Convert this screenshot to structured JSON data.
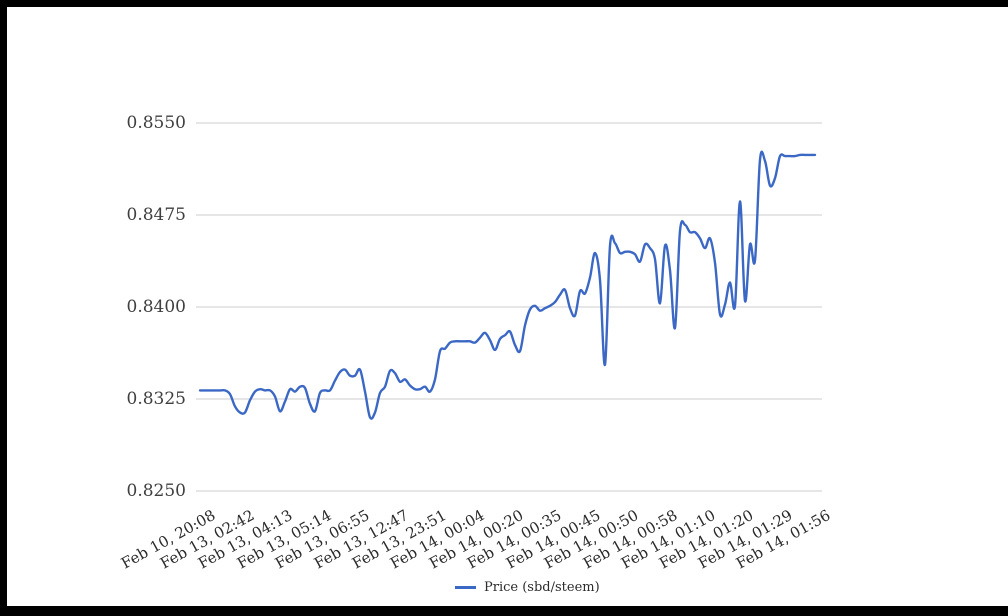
{
  "window": {
    "frame_color": "#000000",
    "background_color": "#ffffff"
  },
  "chart_data": {
    "type": "line",
    "title": "",
    "xlabel": "",
    "ylabel": "",
    "grid": "horizontal",
    "legend_position": "bottom-center",
    "line_color": "#3b68c5",
    "gridline_color": "#cccccc",
    "y_tick_labels": [
      "0.8550",
      "0.8475",
      "0.8400",
      "0.8325",
      "0.8250"
    ],
    "y_ticks": [
      0.855,
      0.8475,
      0.84,
      0.8325,
      0.825
    ],
    "ylim": [
      0.825,
      0.8585
    ],
    "x_tick_labels": [
      "Feb 10, 20:08",
      "Feb 13, 02:42",
      "Feb 13, 04:13",
      "Feb 13, 05:14",
      "Feb 13, 06:55",
      "Feb 13, 12:47",
      "Feb 13, 23:51",
      "Feb 14, 00:04",
      "Feb 14, 00:20",
      "Feb 14, 00:35",
      "Feb 14, 00:45",
      "Feb 14, 00:50",
      "Feb 14, 00:58",
      "Feb 14, 01:10",
      "Feb 14, 01:20",
      "Feb 14, 01:29",
      "Feb 14, 01:56"
    ],
    "series": [
      {
        "name": "Price (sbd/steem)",
        "color": "#3b68c5",
        "values": [
          0.8332,
          0.8332,
          0.8332,
          0.8332,
          0.8332,
          0.8332,
          0.8329,
          0.8319,
          0.8314,
          0.8314,
          0.8324,
          0.8331,
          0.8333,
          0.8332,
          0.8332,
          0.8327,
          0.8315,
          0.8323,
          0.8333,
          0.8331,
          0.8335,
          0.8334,
          0.8321,
          0.8315,
          0.833,
          0.8332,
          0.8332,
          0.834,
          0.8347,
          0.8349,
          0.8344,
          0.8344,
          0.8349,
          0.8331,
          0.831,
          0.8314,
          0.833,
          0.8335,
          0.8348,
          0.8346,
          0.8339,
          0.8341,
          0.8336,
          0.8333,
          0.8333,
          0.8335,
          0.8331,
          0.8341,
          0.8364,
          0.8366,
          0.8371,
          0.8372,
          0.8372,
          0.8372,
          0.8372,
          0.8371,
          0.8375,
          0.8379,
          0.8373,
          0.8365,
          0.8374,
          0.8377,
          0.838,
          0.8369,
          0.8364,
          0.8385,
          0.8398,
          0.8401,
          0.8397,
          0.8399,
          0.8401,
          0.8404,
          0.841,
          0.8414,
          0.8399,
          0.8393,
          0.8413,
          0.8411,
          0.8424,
          0.8444,
          0.8422,
          0.8353,
          0.845,
          0.8452,
          0.8444,
          0.8445,
          0.8445,
          0.8443,
          0.8437,
          0.8451,
          0.8448,
          0.8439,
          0.8403,
          0.845,
          0.843,
          0.8383,
          0.8462,
          0.8467,
          0.8461,
          0.8461,
          0.8456,
          0.8448,
          0.8456,
          0.8436,
          0.8394,
          0.8402,
          0.842,
          0.8401,
          0.8486,
          0.8405,
          0.8451,
          0.8438,
          0.852,
          0.8519,
          0.8499,
          0.8505,
          0.8523,
          0.8523,
          0.8523,
          0.8523,
          0.8524,
          0.8524,
          0.8524,
          0.8524
        ]
      }
    ]
  },
  "legend": {
    "label": "Price (sbd/steem)"
  }
}
